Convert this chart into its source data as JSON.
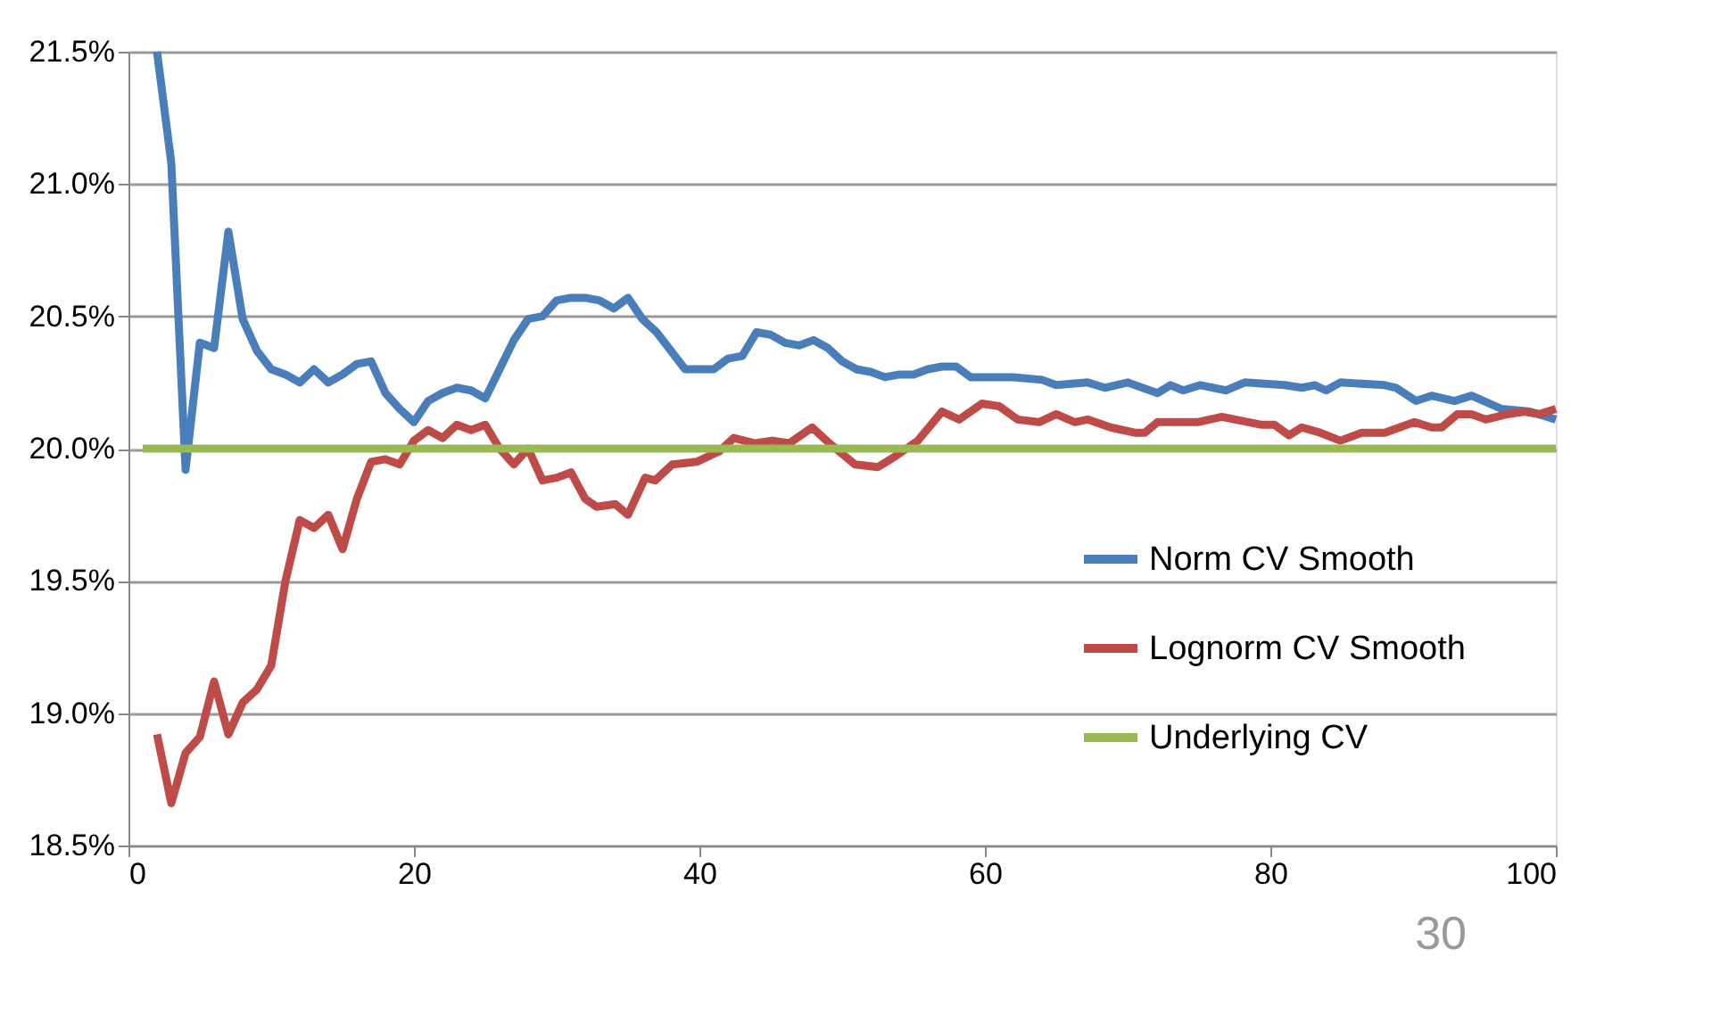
{
  "chart_data": {
    "type": "line",
    "xlim": [
      0,
      100
    ],
    "xticks": [
      0,
      20,
      40,
      60,
      80,
      100
    ],
    "ylim": [
      18.5,
      21.5
    ],
    "yticks": [
      {
        "value": 18.5,
        "label": "18.5%"
      },
      {
        "value": 19.0,
        "label": "19.0%"
      },
      {
        "value": 19.5,
        "label": "19.5%"
      },
      {
        "value": 20.0,
        "label": "20.0%"
      },
      {
        "value": 20.5,
        "label": "20.5%"
      },
      {
        "value": 21.0,
        "label": "21.0%"
      },
      {
        "value": 21.5,
        "label": "21.5%"
      }
    ],
    "grid": "y",
    "legend": "bottom right",
    "marker": "none",
    "line_style": "solid",
    "annotations": [
      "30"
    ],
    "series": [
      {
        "name": "Norm CV Smooth",
        "color": "#4a7ebb",
        "x": [
          2,
          3,
          4,
          5,
          6,
          7,
          8,
          9,
          10,
          11,
          12,
          13,
          14,
          15,
          16,
          17,
          18,
          19,
          20,
          21,
          22,
          23,
          24,
          25,
          26,
          27,
          28,
          29,
          30,
          31,
          32,
          33,
          34,
          35,
          36,
          37,
          38,
          39,
          40,
          41,
          42,
          43,
          44,
          45,
          46,
          47,
          48,
          49,
          50,
          51,
          52,
          53,
          54,
          55,
          56,
          57,
          58,
          59,
          60,
          62,
          64,
          65,
          67.2,
          68.4,
          70.0,
          72.1,
          73.0,
          73.9,
          75.1,
          76.9,
          78.2,
          81.0,
          82.2,
          83.1,
          83.9,
          84.9,
          88.0,
          88.8,
          90.2,
          91.3,
          92.9,
          94.1,
          96.2,
          98.2,
          100
        ],
        "values": [
          21.5,
          21.08,
          19.92,
          20.4,
          20.38,
          20.82,
          20.49,
          20.37,
          20.3,
          20.28,
          20.25,
          20.3,
          20.25,
          20.28,
          20.32,
          20.33,
          20.21,
          20.15,
          20.1,
          20.18,
          20.21,
          20.23,
          20.22,
          20.19,
          20.3,
          20.41,
          20.49,
          20.5,
          20.56,
          20.57,
          20.57,
          20.56,
          20.53,
          20.57,
          20.49,
          20.44,
          20.37,
          20.3,
          20.3,
          20.3,
          20.34,
          20.35,
          20.44,
          20.43,
          20.4,
          20.39,
          20.41,
          20.38,
          20.33,
          20.3,
          20.29,
          20.27,
          20.28,
          20.28,
          20.3,
          20.31,
          20.31,
          20.27,
          20.27,
          20.27,
          20.26,
          20.24,
          20.25,
          20.23,
          20.25,
          20.21,
          20.24,
          20.22,
          20.24,
          20.22,
          20.25,
          20.24,
          20.23,
          20.24,
          20.22,
          20.25,
          20.24,
          20.23,
          20.18,
          20.2,
          20.18,
          20.2,
          20.15,
          20.14,
          20.11
        ]
      },
      {
        "name": "Lognorm CV Smooth",
        "color": "#be4b48",
        "x": [
          2,
          3,
          4,
          5,
          6,
          7,
          8,
          9,
          10,
          11,
          12,
          13,
          14,
          15,
          16,
          17,
          18,
          19,
          20,
          21,
          22,
          23,
          24,
          25,
          26,
          27,
          28,
          29,
          30,
          31,
          32,
          32.8,
          34.1,
          35.0,
          36.2,
          36.9,
          38.1,
          39.8,
          41.4,
          42.4,
          43.9,
          45.1,
          46.3,
          47.9,
          49.1,
          50.9,
          52.5,
          53.7,
          55.3,
          57.0,
          58.2,
          59.8,
          61.0,
          62.3,
          63.8,
          65.0,
          66.3,
          67.2,
          68.8,
          70.5,
          71.2,
          72.1,
          74.9,
          76.6,
          79.4,
          80.3,
          81.3,
          82.2,
          83.5,
          84.9,
          86.4,
          88.0,
          90.1,
          91.3,
          92.0,
          93.1,
          94.1,
          95.1,
          96.6,
          97.8,
          98.8,
          100
        ],
        "values": [
          18.92,
          18.66,
          18.85,
          18.91,
          19.12,
          18.92,
          19.04,
          19.09,
          19.18,
          19.5,
          19.73,
          19.7,
          19.75,
          19.62,
          19.81,
          19.95,
          19.96,
          19.94,
          20.03,
          20.07,
          20.04,
          20.09,
          20.07,
          20.09,
          20.0,
          19.94,
          20.0,
          19.88,
          19.89,
          19.91,
          19.81,
          19.78,
          19.79,
          19.75,
          19.89,
          19.88,
          19.94,
          19.95,
          19.99,
          20.04,
          20.02,
          20.03,
          20.02,
          20.08,
          20.02,
          19.94,
          19.93,
          19.97,
          20.03,
          20.14,
          20.11,
          20.17,
          20.16,
          20.11,
          20.1,
          20.13,
          20.1,
          20.11,
          20.08,
          20.06,
          20.06,
          20.1,
          20.1,
          20.12,
          20.09,
          20.09,
          20.05,
          20.08,
          20.06,
          20.03,
          20.06,
          20.06,
          20.1,
          20.08,
          20.08,
          20.13,
          20.13,
          20.11,
          20.13,
          20.14,
          20.13,
          20.15
        ]
      },
      {
        "name": "Underlying CV",
        "color": "#98b954",
        "x": [
          1,
          100
        ],
        "values": [
          20.0,
          20.0
        ]
      }
    ]
  }
}
